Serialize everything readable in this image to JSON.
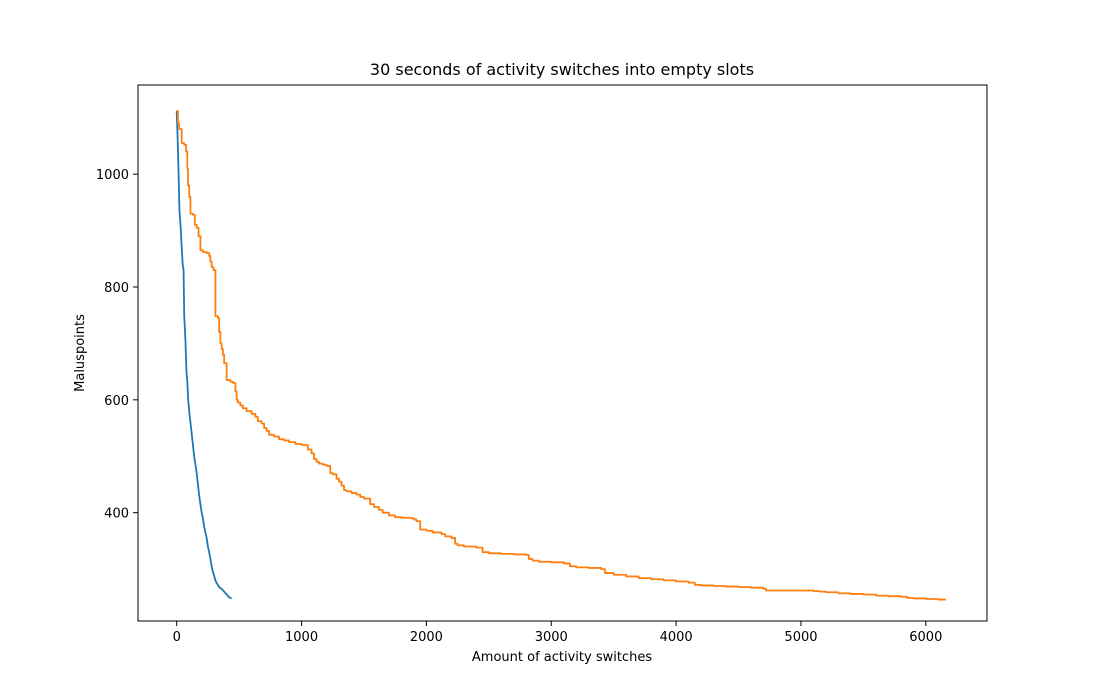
{
  "chart_data": {
    "type": "line",
    "title": "30 seconds of activity switches into empty slots",
    "xlabel": "Amount of activity switches",
    "ylabel": "Maluspoints",
    "xlim": [
      -310,
      6490
    ],
    "ylim": [
      208,
      1158
    ],
    "xticks": [
      0,
      1000,
      2000,
      3000,
      4000,
      5000,
      6000
    ],
    "yticks": [
      400,
      600,
      800,
      1000
    ],
    "grid": false,
    "legend": "none",
    "series": [
      {
        "color": "#1f77b4",
        "step": false,
        "points": [
          [
            0,
            1112
          ],
          [
            8,
            1060
          ],
          [
            15,
            1000
          ],
          [
            22,
            935
          ],
          [
            32,
            905
          ],
          [
            40,
            870
          ],
          [
            48,
            840
          ],
          [
            55,
            830
          ],
          [
            60,
            750
          ],
          [
            70,
            705
          ],
          [
            78,
            650
          ],
          [
            85,
            632
          ],
          [
            92,
            600
          ],
          [
            100,
            580
          ],
          [
            110,
            560
          ],
          [
            120,
            540
          ],
          [
            130,
            520
          ],
          [
            140,
            500
          ],
          [
            150,
            485
          ],
          [
            160,
            470
          ],
          [
            170,
            450
          ],
          [
            180,
            430
          ],
          [
            190,
            415
          ],
          [
            200,
            400
          ],
          [
            210,
            390
          ],
          [
            220,
            375
          ],
          [
            230,
            365
          ],
          [
            240,
            355
          ],
          [
            250,
            340
          ],
          [
            260,
            330
          ],
          [
            270,
            318
          ],
          [
            280,
            305
          ],
          [
            290,
            295
          ],
          [
            300,
            288
          ],
          [
            310,
            280
          ],
          [
            320,
            275
          ],
          [
            330,
            272
          ],
          [
            340,
            268
          ],
          [
            360,
            265
          ],
          [
            380,
            260
          ],
          [
            400,
            255
          ],
          [
            420,
            250
          ],
          [
            440,
            248
          ]
        ]
      },
      {
        "color": "#ff7f0e",
        "step": true,
        "points": [
          [
            0,
            1112
          ],
          [
            10,
            1090
          ],
          [
            20,
            1080
          ],
          [
            40,
            1055
          ],
          [
            60,
            1052
          ],
          [
            75,
            1040
          ],
          [
            85,
            1010
          ],
          [
            90,
            980
          ],
          [
            100,
            960
          ],
          [
            110,
            930
          ],
          [
            130,
            928
          ],
          [
            145,
            910
          ],
          [
            160,
            905
          ],
          [
            175,
            890
          ],
          [
            190,
            865
          ],
          [
            210,
            862
          ],
          [
            240,
            860
          ],
          [
            260,
            855
          ],
          [
            270,
            845
          ],
          [
            280,
            835
          ],
          [
            295,
            830
          ],
          [
            310,
            748
          ],
          [
            330,
            745
          ],
          [
            340,
            720
          ],
          [
            350,
            700
          ],
          [
            360,
            690
          ],
          [
            370,
            680
          ],
          [
            380,
            665
          ],
          [
            400,
            635
          ],
          [
            430,
            632
          ],
          [
            450,
            630
          ],
          [
            470,
            615
          ],
          [
            480,
            600
          ],
          [
            490,
            595
          ],
          [
            510,
            590
          ],
          [
            530,
            585
          ],
          [
            560,
            580
          ],
          [
            600,
            575
          ],
          [
            630,
            570
          ],
          [
            650,
            562
          ],
          [
            680,
            558
          ],
          [
            700,
            550
          ],
          [
            720,
            545
          ],
          [
            740,
            538
          ],
          [
            780,
            535
          ],
          [
            820,
            530
          ],
          [
            860,
            528
          ],
          [
            900,
            525
          ],
          [
            950,
            522
          ],
          [
            1000,
            520
          ],
          [
            1050,
            512
          ],
          [
            1080,
            505
          ],
          [
            1100,
            495
          ],
          [
            1120,
            490
          ],
          [
            1140,
            487
          ],
          [
            1170,
            485
          ],
          [
            1200,
            483
          ],
          [
            1230,
            470
          ],
          [
            1250,
            468
          ],
          [
            1280,
            460
          ],
          [
            1300,
            455
          ],
          [
            1320,
            448
          ],
          [
            1340,
            440
          ],
          [
            1360,
            438
          ],
          [
            1400,
            435
          ],
          [
            1440,
            432
          ],
          [
            1470,
            428
          ],
          [
            1500,
            425
          ],
          [
            1550,
            415
          ],
          [
            1580,
            410
          ],
          [
            1620,
            405
          ],
          [
            1650,
            400
          ],
          [
            1700,
            395
          ],
          [
            1750,
            392
          ],
          [
            1800,
            391
          ],
          [
            1880,
            390
          ],
          [
            1900,
            388
          ],
          [
            1920,
            385
          ],
          [
            1950,
            370
          ],
          [
            2000,
            368
          ],
          [
            2050,
            365
          ],
          [
            2120,
            362
          ],
          [
            2150,
            358
          ],
          [
            2200,
            355
          ],
          [
            2230,
            345
          ],
          [
            2250,
            342
          ],
          [
            2300,
            340
          ],
          [
            2400,
            338
          ],
          [
            2450,
            330
          ],
          [
            2500,
            328
          ],
          [
            2600,
            327
          ],
          [
            2700,
            326
          ],
          [
            2800,
            325
          ],
          [
            2820,
            318
          ],
          [
            2850,
            315
          ],
          [
            2900,
            313
          ],
          [
            3000,
            312
          ],
          [
            3100,
            310
          ],
          [
            3150,
            305
          ],
          [
            3200,
            303
          ],
          [
            3300,
            302
          ],
          [
            3400,
            300
          ],
          [
            3430,
            293
          ],
          [
            3500,
            290
          ],
          [
            3600,
            287
          ],
          [
            3700,
            284
          ],
          [
            3800,
            282
          ],
          [
            3900,
            280
          ],
          [
            4000,
            278
          ],
          [
            4100,
            276
          ],
          [
            4150,
            272
          ],
          [
            4200,
            271
          ],
          [
            4300,
            270
          ],
          [
            4400,
            269
          ],
          [
            4500,
            268
          ],
          [
            4600,
            267
          ],
          [
            4700,
            265
          ],
          [
            4720,
            262
          ],
          [
            4800,
            262
          ],
          [
            5000,
            262
          ],
          [
            5100,
            261
          ],
          [
            5150,
            260
          ],
          [
            5200,
            259
          ],
          [
            5300,
            257
          ],
          [
            5400,
            256
          ],
          [
            5500,
            255
          ],
          [
            5600,
            253
          ],
          [
            5700,
            252
          ],
          [
            5800,
            251
          ],
          [
            5850,
            249
          ],
          [
            5900,
            248
          ],
          [
            6000,
            247
          ],
          [
            6100,
            246
          ],
          [
            6160,
            246
          ]
        ]
      }
    ]
  }
}
